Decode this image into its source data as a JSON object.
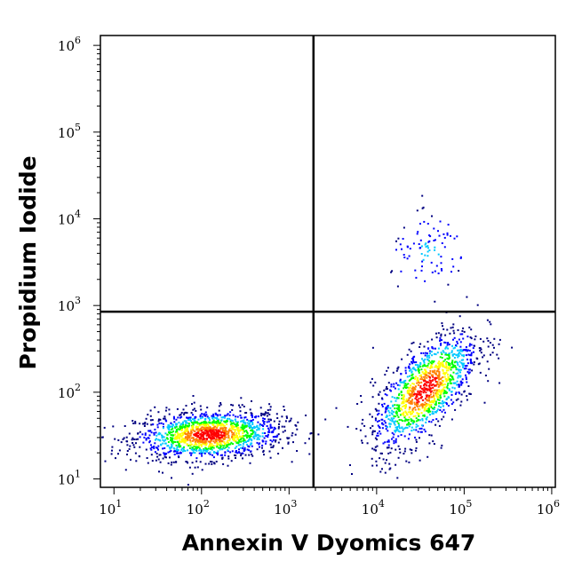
{
  "chart_data": {
    "type": "scatter",
    "style": "density-colored flow cytometry dot plot",
    "xlabel": "Annexin V Dyomics 647",
    "ylabel": "Propidium Iodide",
    "xscale": "log",
    "yscale": "log",
    "xlim": [
      7,
      1100000
    ],
    "ylim": [
      8,
      1300000
    ],
    "x_ticks": [
      {
        "base": "10",
        "exp": "1",
        "value": 10
      },
      {
        "base": "10",
        "exp": "2",
        "value": 100
      },
      {
        "base": "10",
        "exp": "3",
        "value": 1000
      },
      {
        "base": "10",
        "exp": "4",
        "value": 10000
      },
      {
        "base": "10",
        "exp": "5",
        "value": 100000
      },
      {
        "base": "10",
        "exp": "6",
        "value": 1000000
      }
    ],
    "y_ticks": [
      {
        "base": "10",
        "exp": "1",
        "value": 10
      },
      {
        "base": "10",
        "exp": "2",
        "value": 100
      },
      {
        "base": "10",
        "exp": "3",
        "value": 1000
      },
      {
        "base": "10",
        "exp": "4",
        "value": 10000
      },
      {
        "base": "10",
        "exp": "5",
        "value": 100000
      },
      {
        "base": "10",
        "exp": "6",
        "value": 1000000
      }
    ],
    "quadrant_gates": {
      "x": 1900,
      "y": 850
    },
    "populations": [
      {
        "center": [
          120,
          33
        ],
        "spread": [
          0.42,
          0.14
        ],
        "count": 1500,
        "tilt": 0.05
      },
      {
        "center": [
          35000,
          110
        ],
        "spread": [
          0.3,
          0.26
        ],
        "count": 1300,
        "tilt": 0.75
      },
      {
        "center": [
          40000,
          4200
        ],
        "spread": [
          0.22,
          0.2
        ],
        "count": 90,
        "tilt": 0.1
      }
    ],
    "density_colors": [
      "#000080",
      "#0000ff",
      "#00c8ff",
      "#00ff00",
      "#ffff00",
      "#ff8000",
      "#ff0000"
    ],
    "grid": false,
    "legend": "none"
  }
}
